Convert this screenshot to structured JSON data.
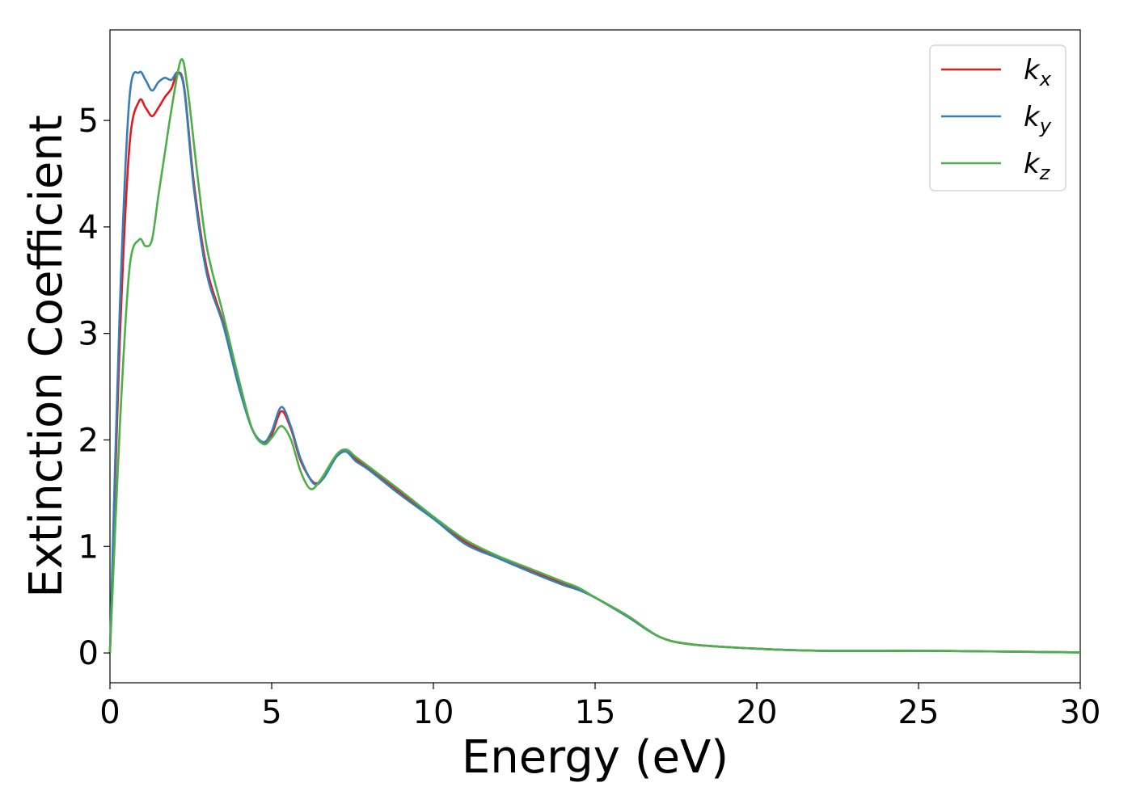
{
  "chart_data": {
    "type": "line",
    "xlabel": "Energy (eV)",
    "ylabel": "Extinction Coefficient",
    "xlim": [
      0,
      30
    ],
    "ylim": [
      -0.28,
      5.85
    ],
    "xticks": [
      "0",
      "5",
      "10",
      "15",
      "20",
      "25",
      "30"
    ],
    "yticks": [
      "0",
      "1",
      "2",
      "3",
      "4",
      "5"
    ],
    "grid": false,
    "legend_position": "top-right",
    "series": [
      {
        "name": "k",
        "subscript": "x",
        "color": "#e41a1c",
        "points": [
          [
            0,
            0
          ],
          [
            0.3,
            2.9
          ],
          [
            0.6,
            4.75
          ],
          [
            0.9,
            5.18
          ],
          [
            1.1,
            5.12
          ],
          [
            1.3,
            5.04
          ],
          [
            1.5,
            5.12
          ],
          [
            1.7,
            5.22
          ],
          [
            1.9,
            5.3
          ],
          [
            2.1,
            5.45
          ],
          [
            2.3,
            5.3
          ],
          [
            2.6,
            4.4
          ],
          [
            3.0,
            3.6
          ],
          [
            3.5,
            3.1
          ],
          [
            4.0,
            2.5
          ],
          [
            4.4,
            2.1
          ],
          [
            4.75,
            1.97
          ],
          [
            5.0,
            2.05
          ],
          [
            5.3,
            2.27
          ],
          [
            5.6,
            2.1
          ],
          [
            5.9,
            1.8
          ],
          [
            6.3,
            1.6
          ],
          [
            6.6,
            1.65
          ],
          [
            7.0,
            1.85
          ],
          [
            7.3,
            1.9
          ],
          [
            7.6,
            1.82
          ],
          [
            8.0,
            1.73
          ],
          [
            9.0,
            1.5
          ],
          [
            10.0,
            1.27
          ],
          [
            11.0,
            1.04
          ],
          [
            12.0,
            0.9
          ],
          [
            13.0,
            0.78
          ],
          [
            14.0,
            0.65
          ],
          [
            14.5,
            0.6
          ],
          [
            15.0,
            0.52
          ],
          [
            16.0,
            0.35
          ],
          [
            17.0,
            0.15
          ],
          [
            18.0,
            0.08
          ],
          [
            20.0,
            0.04
          ],
          [
            22.0,
            0.02
          ],
          [
            25.0,
            0.02
          ],
          [
            27.0,
            0.015
          ],
          [
            30.0,
            0.005
          ]
        ]
      },
      {
        "name": "k",
        "subscript": "y",
        "color": "#377eb8",
        "points": [
          [
            0,
            0
          ],
          [
            0.3,
            3.2
          ],
          [
            0.6,
            5.2
          ],
          [
            0.9,
            5.45
          ],
          [
            1.1,
            5.38
          ],
          [
            1.3,
            5.28
          ],
          [
            1.5,
            5.36
          ],
          [
            1.7,
            5.4
          ],
          [
            1.9,
            5.38
          ],
          [
            2.1,
            5.45
          ],
          [
            2.3,
            5.28
          ],
          [
            2.6,
            4.35
          ],
          [
            3.0,
            3.55
          ],
          [
            3.5,
            3.08
          ],
          [
            4.0,
            2.48
          ],
          [
            4.4,
            2.1
          ],
          [
            4.75,
            1.98
          ],
          [
            5.0,
            2.08
          ],
          [
            5.3,
            2.31
          ],
          [
            5.6,
            2.12
          ],
          [
            5.9,
            1.82
          ],
          [
            6.3,
            1.59
          ],
          [
            6.6,
            1.64
          ],
          [
            7.0,
            1.84
          ],
          [
            7.3,
            1.89
          ],
          [
            7.6,
            1.8
          ],
          [
            8.0,
            1.72
          ],
          [
            9.0,
            1.48
          ],
          [
            10.0,
            1.26
          ],
          [
            11.0,
            1.02
          ],
          [
            12.0,
            0.89
          ],
          [
            13.0,
            0.76
          ],
          [
            14.0,
            0.64
          ],
          [
            14.5,
            0.59
          ],
          [
            15.0,
            0.52
          ],
          [
            16.0,
            0.34
          ],
          [
            17.0,
            0.15
          ],
          [
            18.0,
            0.08
          ],
          [
            20.0,
            0.04
          ],
          [
            22.0,
            0.02
          ],
          [
            25.0,
            0.02
          ],
          [
            27.0,
            0.015
          ],
          [
            30.0,
            0.005
          ]
        ]
      },
      {
        "name": "k",
        "subscript": "z",
        "color": "#4daf4a",
        "points": [
          [
            0,
            0
          ],
          [
            0.3,
            2.1
          ],
          [
            0.6,
            3.6
          ],
          [
            0.9,
            3.88
          ],
          [
            1.1,
            3.82
          ],
          [
            1.3,
            3.88
          ],
          [
            1.5,
            4.3
          ],
          [
            1.7,
            4.7
          ],
          [
            1.9,
            5.1
          ],
          [
            2.2,
            5.57
          ],
          [
            2.4,
            5.3
          ],
          [
            2.7,
            4.5
          ],
          [
            3.0,
            3.8
          ],
          [
            3.5,
            3.18
          ],
          [
            4.0,
            2.55
          ],
          [
            4.4,
            2.1
          ],
          [
            4.75,
            1.96
          ],
          [
            5.0,
            2.02
          ],
          [
            5.3,
            2.13
          ],
          [
            5.6,
            2.0
          ],
          [
            5.9,
            1.7
          ],
          [
            6.2,
            1.54
          ],
          [
            6.5,
            1.62
          ],
          [
            7.0,
            1.86
          ],
          [
            7.3,
            1.91
          ],
          [
            7.6,
            1.84
          ],
          [
            8.0,
            1.75
          ],
          [
            9.0,
            1.52
          ],
          [
            10.0,
            1.28
          ],
          [
            11.0,
            1.06
          ],
          [
            12.0,
            0.91
          ],
          [
            13.0,
            0.79
          ],
          [
            14.0,
            0.67
          ],
          [
            14.5,
            0.61
          ],
          [
            15.0,
            0.52
          ],
          [
            16.0,
            0.35
          ],
          [
            17.0,
            0.15
          ],
          [
            18.0,
            0.08
          ],
          [
            20.0,
            0.04
          ],
          [
            22.0,
            0.02
          ],
          [
            25.0,
            0.02
          ],
          [
            27.0,
            0.015
          ],
          [
            30.0,
            0.005
          ]
        ]
      }
    ]
  }
}
